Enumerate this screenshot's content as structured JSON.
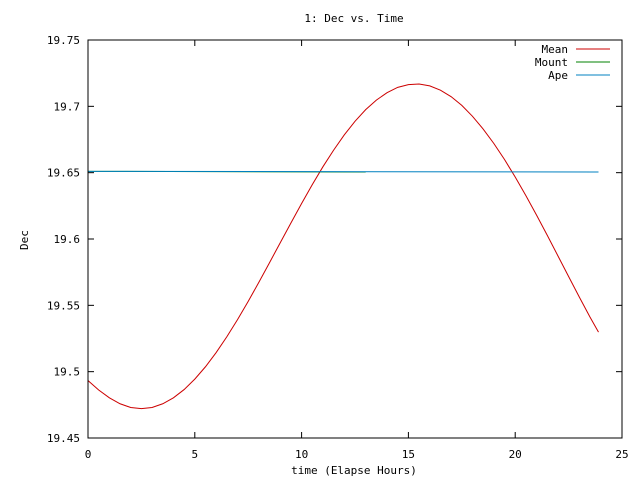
{
  "chart_data": {
    "type": "line",
    "title": "1: Dec vs. Time",
    "xlabel": "time (Elapse Hours)",
    "ylabel": "Dec",
    "xlim": [
      0,
      25
    ],
    "ylim": [
      19.45,
      19.75
    ],
    "xticks": [
      0,
      5,
      10,
      15,
      20,
      25
    ],
    "xtick_labels": [
      "0",
      "5",
      "10",
      "15",
      "20",
      "25"
    ],
    "yticks": [
      19.45,
      19.5,
      19.55,
      19.6,
      19.65,
      19.7,
      19.75
    ],
    "ytick_labels": [
      "19.45",
      "19.5",
      "19.55",
      "19.6",
      "19.65",
      "19.7",
      "19.75"
    ],
    "grid": false,
    "legend_position": "top-right",
    "series": [
      {
        "name": "Mean",
        "color": "#cc0000",
        "x": [
          0,
          0.5,
          1,
          1.5,
          2,
          2.5,
          3,
          3.5,
          4,
          4.5,
          5,
          5.5,
          6,
          6.5,
          7,
          7.5,
          8,
          8.5,
          9,
          9.5,
          10,
          10.5,
          11,
          11.5,
          12,
          12.5,
          13,
          13.5,
          14,
          14.5,
          15,
          15.5,
          16,
          16.5,
          17,
          17.5,
          18,
          18.5,
          19,
          19.5,
          20,
          20.5,
          21,
          21.5,
          22,
          22.5,
          23,
          23.5,
          23.9
        ],
        "y": [
          19.4933,
          19.4862,
          19.4803,
          19.4758,
          19.473,
          19.4721,
          19.473,
          19.4758,
          19.4803,
          19.4865,
          19.4944,
          19.5037,
          19.5144,
          19.5263,
          19.5392,
          19.553,
          19.5674,
          19.5822,
          19.5972,
          19.6121,
          19.6268,
          19.641,
          19.6545,
          19.667,
          19.6785,
          19.6887,
          19.6975,
          19.7047,
          19.7103,
          19.7143,
          19.7164,
          19.7168,
          19.7154,
          19.7122,
          19.7073,
          19.7007,
          19.6925,
          19.6829,
          19.672,
          19.6599,
          19.6467,
          19.6327,
          19.618,
          19.6028,
          19.5873,
          19.5717,
          19.5563,
          19.5412,
          19.5298
        ]
      },
      {
        "name": "Mount",
        "color": "#008000",
        "x": [
          0,
          13
        ],
        "y": [
          19.651,
          19.6505
        ]
      },
      {
        "name": "Ape",
        "color": "#0080c0",
        "x": [
          0,
          23.9
        ],
        "y": [
          19.651,
          19.6505
        ]
      }
    ]
  }
}
